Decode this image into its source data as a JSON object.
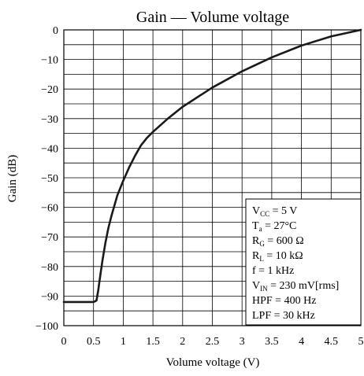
{
  "chart_data": {
    "type": "line",
    "title": "Gain — Volume voltage",
    "xlabel": "Volume voltage (V)",
    "ylabel": "Gain (dB)",
    "xlim": [
      0,
      5
    ],
    "ylim": [
      -100,
      0
    ],
    "grid": true,
    "x_ticks": [
      "0",
      "0.5",
      "1",
      "1.5",
      "2",
      "2.5",
      "3",
      "3.5",
      "4",
      "4.5",
      "5"
    ],
    "y_ticks": [
      "0",
      "−10",
      "−20",
      "−30",
      "−40",
      "−50",
      "−60",
      "−70",
      "−80",
      "−90",
      "−100"
    ],
    "series": [
      {
        "x": [
          0,
          0.5,
          0.55,
          0.58,
          0.6,
          0.65,
          0.7,
          0.75,
          0.8,
          0.9,
          1.0,
          1.1,
          1.2,
          1.3,
          1.4,
          1.5,
          1.75,
          2.0,
          2.5,
          3.0,
          3.5,
          4.0,
          4.5,
          5.0
        ],
        "y": [
          -92,
          -92,
          -91.5,
          -88,
          -85,
          -78,
          -72,
          -67,
          -63,
          -56,
          -51,
          -46.5,
          -42.5,
          -39,
          -36.5,
          -34.5,
          -30,
          -26,
          -19.5,
          -14,
          -9.3,
          -5.3,
          -2.2,
          0
        ]
      }
    ],
    "annotation": [
      {
        "main": "V",
        "sub": "CC",
        "rest": " = 5 V"
      },
      {
        "main": "T",
        "sub": "a",
        "rest": " = 27°C"
      },
      {
        "main": "R",
        "sub": "G",
        "rest": " = 600 Ω"
      },
      {
        "main": "R",
        "sub": "L",
        "rest": " = 10 kΩ"
      },
      {
        "main": "f = 1 kHz",
        "sub": "",
        "rest": ""
      },
      {
        "main": "V",
        "sub": "IN",
        "rest": " = 230 mV[rms]"
      },
      {
        "main": "HPF = 400 Hz",
        "sub": "",
        "rest": ""
      },
      {
        "main": "LPF = 30 kHz",
        "sub": "",
        "rest": ""
      }
    ],
    "colors": {
      "line": "#1a1a1a",
      "grid": "#000000",
      "background": "#ffffff"
    }
  }
}
